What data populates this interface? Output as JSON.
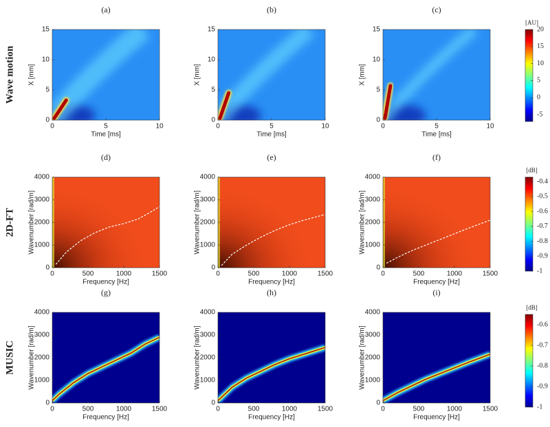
{
  "row_labels": [
    "Wave motion",
    "2D-FT",
    "MUSIC"
  ],
  "chart_data": [
    {
      "type": "image",
      "title": "(a)",
      "xlabel": "Time [ms]",
      "ylabel": "X [mm]",
      "xlim": [
        0,
        10
      ],
      "ylim": [
        0,
        15
      ],
      "xticks": [
        0,
        5,
        10
      ],
      "yticks": [
        0,
        5,
        10,
        15
      ]
    },
    {
      "type": "image",
      "title": "(b)",
      "xlabel": "Time [ms]",
      "ylabel": "X [mm]",
      "xlim": [
        0,
        10
      ],
      "ylim": [
        0,
        15
      ],
      "xticks": [
        0,
        5,
        10
      ],
      "yticks": [
        0,
        5,
        10,
        15
      ]
    },
    {
      "type": "image",
      "title": "(c)",
      "xlabel": "Time [ms]",
      "ylabel": "X [mm]",
      "xlim": [
        0,
        10
      ],
      "ylim": [
        0,
        15
      ],
      "xticks": [
        0,
        5,
        10
      ],
      "yticks": [
        0,
        5,
        10,
        15
      ]
    },
    {
      "type": "image",
      "title": "(d)",
      "xlabel": "Frequency [Hz]",
      "ylabel": "Wavenumber [rad/m]",
      "xlim": [
        0,
        1500
      ],
      "ylim": [
        0,
        4000
      ],
      "xticks": [
        0,
        500,
        1000,
        1500
      ],
      "yticks": [
        0,
        1000,
        2000,
        3000,
        4000
      ],
      "series": [
        {
          "color": "#ffffff",
          "style": "dashed",
          "x": [
            50,
            200,
            400,
            600,
            800,
            1000,
            1200,
            1400,
            1500
          ],
          "values": [
            150,
            700,
            1200,
            1550,
            1800,
            1950,
            2150,
            2500,
            2700
          ]
        }
      ]
    },
    {
      "type": "image",
      "title": "(e)",
      "xlabel": "Frequency [Hz]",
      "ylabel": "Wavenumber [rad/m]",
      "xlim": [
        0,
        1500
      ],
      "ylim": [
        0,
        4000
      ],
      "xticks": [
        0,
        500,
        1000,
        1500
      ],
      "yticks": [
        0,
        1000,
        2000,
        3000,
        4000
      ],
      "series": [
        {
          "color": "#ffffff",
          "style": "dashed",
          "x": [
            50,
            200,
            400,
            600,
            800,
            1000,
            1200,
            1500
          ],
          "values": [
            100,
            600,
            1000,
            1350,
            1650,
            1900,
            2100,
            2350
          ]
        }
      ]
    },
    {
      "type": "image",
      "title": "(f)",
      "xlabel": "Frequency [Hz]",
      "ylabel": "Wavenumber [rad/m]",
      "xlim": [
        0,
        1500
      ],
      "ylim": [
        0,
        4000
      ],
      "xticks": [
        0,
        500,
        1000,
        1500
      ],
      "yticks": [
        0,
        1000,
        2000,
        3000,
        4000
      ],
      "series": [
        {
          "color": "#ffffff",
          "style": "dashed",
          "x": [
            50,
            200,
            400,
            600,
            800,
            1000,
            1200,
            1500
          ],
          "values": [
            200,
            450,
            750,
            1000,
            1250,
            1500,
            1750,
            2100
          ]
        }
      ]
    },
    {
      "type": "image",
      "title": "(g)",
      "xlabel": "Frequency [Hz]",
      "ylabel": "Wavenumber [rad/m]",
      "xlim": [
        0,
        1500
      ],
      "ylim": [
        0,
        4000
      ],
      "xticks": [
        0,
        500,
        1000,
        1500
      ],
      "yticks": [
        0,
        1000,
        2000,
        3000,
        4000
      ],
      "series": [
        {
          "color": "#b01010",
          "style": "ridge",
          "x": [
            0,
            100,
            300,
            500,
            700,
            900,
            1100,
            1300,
            1500
          ],
          "values": [
            100,
            400,
            900,
            1300,
            1600,
            1900,
            2200,
            2600,
            2900
          ]
        }
      ]
    },
    {
      "type": "image",
      "title": "(h)",
      "xlabel": "Frequency [Hz]",
      "ylabel": "Wavenumber [rad/m]",
      "xlim": [
        0,
        1500
      ],
      "ylim": [
        0,
        4000
      ],
      "xticks": [
        0,
        500,
        1000,
        1500
      ],
      "yticks": [
        0,
        1000,
        2000,
        3000,
        4000
      ],
      "series": [
        {
          "color": "#b01010",
          "style": "ridge",
          "x": [
            0,
            200,
            400,
            600,
            800,
            1000,
            1200,
            1500
          ],
          "values": [
            100,
            700,
            1100,
            1400,
            1700,
            1950,
            2150,
            2450
          ]
        }
      ]
    },
    {
      "type": "image",
      "title": "(i)",
      "xlabel": "Frequency [Hz]",
      "ylabel": "Wavenumber [rad/m]",
      "xlim": [
        0,
        1500
      ],
      "ylim": [
        0,
        4000
      ],
      "xticks": [
        0,
        500,
        1000,
        1500
      ],
      "yticks": [
        0,
        1000,
        2000,
        3000,
        4000
      ],
      "series": [
        {
          "color": "#b01010",
          "style": "ridge",
          "x": [
            0,
            200,
            400,
            600,
            800,
            1000,
            1200,
            1500
          ],
          "values": [
            100,
            450,
            750,
            1050,
            1300,
            1550,
            1800,
            2150
          ]
        }
      ]
    },
    {
      "type": "colorbar",
      "label": "[AU]",
      "ylim": [
        -7,
        20
      ],
      "yticks": [
        -5,
        0,
        5,
        10,
        15,
        20
      ]
    },
    {
      "type": "colorbar",
      "label": "[dB]",
      "ylim": [
        -1,
        -0.37
      ],
      "yticks": [
        -1,
        -0.9,
        -0.8,
        -0.7,
        -0.6,
        -0.5,
        -0.4
      ]
    },
    {
      "type": "colorbar",
      "label": "[dB]",
      "ylim": [
        -1,
        -0.55
      ],
      "yticks": [
        -1,
        -0.9,
        -0.8,
        -0.7,
        -0.6
      ]
    }
  ]
}
